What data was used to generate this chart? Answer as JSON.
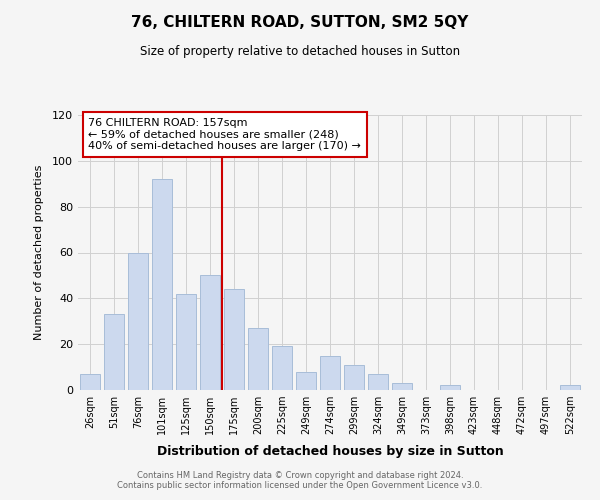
{
  "title": "76, CHILTERN ROAD, SUTTON, SM2 5QY",
  "subtitle": "Size of property relative to detached houses in Sutton",
  "xlabel": "Distribution of detached houses by size in Sutton",
  "ylabel": "Number of detached properties",
  "bar_labels": [
    "26sqm",
    "51sqm",
    "76sqm",
    "101sqm",
    "125sqm",
    "150sqm",
    "175sqm",
    "200sqm",
    "225sqm",
    "249sqm",
    "274sqm",
    "299sqm",
    "324sqm",
    "349sqm",
    "373sqm",
    "398sqm",
    "423sqm",
    "448sqm",
    "472sqm",
    "497sqm",
    "522sqm"
  ],
  "bar_values": [
    7,
    33,
    60,
    92,
    42,
    50,
    44,
    27,
    19,
    8,
    15,
    11,
    7,
    3,
    0,
    2,
    0,
    0,
    0,
    0,
    2
  ],
  "bar_color": "#ccd9ee",
  "bar_edge_color": "#a8bdd8",
  "vline_x": 5.5,
  "vline_color": "#cc0000",
  "annotation_lines": [
    "76 CHILTERN ROAD: 157sqm",
    "← 59% of detached houses are smaller (248)",
    "40% of semi-detached houses are larger (170) →"
  ],
  "ylim": [
    0,
    120
  ],
  "yticks": [
    0,
    20,
    40,
    60,
    80,
    100,
    120
  ],
  "footer_line1": "Contains HM Land Registry data © Crown copyright and database right 2024.",
  "footer_line2": "Contains public sector information licensed under the Open Government Licence v3.0.",
  "background_color": "#f5f5f5",
  "grid_color": "#d0d0d0"
}
